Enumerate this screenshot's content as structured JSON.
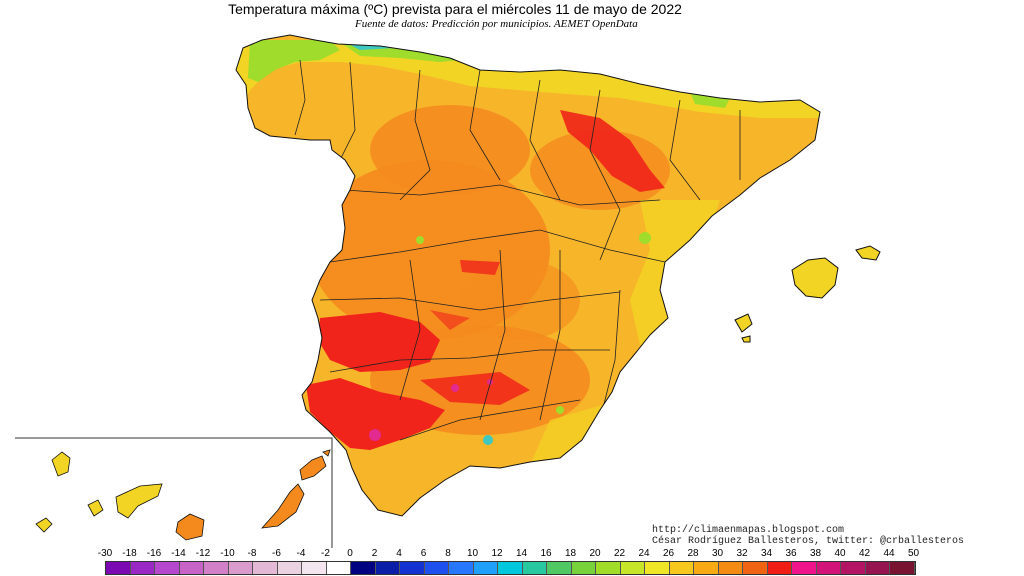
{
  "map": {
    "title": "Temperatura máxima (ºC) prevista para el miércoles 11 de mayo de 2022",
    "subtitle": "Fuente de datos: Predicción por municipios. AEMET OpenData",
    "credits": {
      "url": "http://climaenmapas.blogspot.com",
      "author": "César Rodríguez Ballesteros, twitter: @crballesteros"
    },
    "regions": [
      "peninsula",
      "baleares",
      "canarias"
    ],
    "colors": {
      "hot_red": "#f0241a",
      "orange": "#f48a1e",
      "yellow_orange": "#f7b52a",
      "yellow": "#f2d424",
      "green": "#9fdc2b",
      "cyan": "#3ec8c0",
      "magenta": "#e22a8f",
      "sea": "#ffffff"
    }
  },
  "legend": {
    "labels": [
      "-30",
      "-18",
      "-16",
      "-14",
      "-12",
      "-10",
      "-8",
      "-6",
      "-4",
      "-2",
      "0",
      "2",
      "4",
      "6",
      "8",
      "10",
      "12",
      "14",
      "16",
      "18",
      "20",
      "22",
      "24",
      "26",
      "28",
      "30",
      "32",
      "34",
      "36",
      "38",
      "40",
      "42",
      "44",
      "50"
    ],
    "colors": [
      "#7b0ab3",
      "#9a28c4",
      "#b548cf",
      "#c864c8",
      "#d280c8",
      "#da9ccc",
      "#e3b9d6",
      "#ecd3e2",
      "#f3e6ee",
      "#ffffff",
      "#000080",
      "#0a1ea8",
      "#1432d2",
      "#1e50f0",
      "#2878ff",
      "#1fa0ff",
      "#00c8dc",
      "#28c8a0",
      "#50c864",
      "#78d23c",
      "#a0dc28",
      "#c8e628",
      "#f0e628",
      "#f7c81e",
      "#f8aa14",
      "#f48c14",
      "#f06414",
      "#f01e14",
      "#f0148c",
      "#d21478",
      "#b41464",
      "#961450",
      "#781432"
    ]
  }
}
